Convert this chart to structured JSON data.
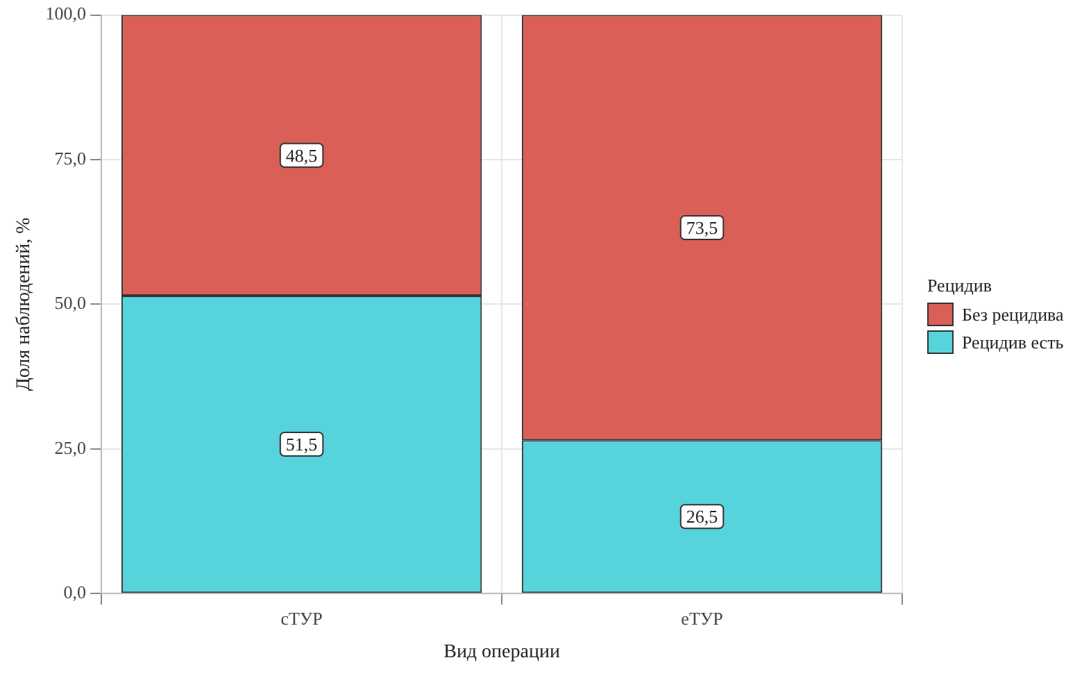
{
  "chart_data": {
    "type": "bar",
    "stacked": true,
    "xlabel": "Вид операции",
    "ylabel": "Доля наблюдений, %",
    "legend_title": "Рецидив",
    "legend": "right",
    "grid": true,
    "categories": [
      "сТУР",
      "еТУР"
    ],
    "series": [
      {
        "name": "Рецидив есть",
        "color": "#56d3db",
        "values": [
          51.5,
          26.5
        ],
        "value_labels": [
          "51,5",
          "26,5"
        ]
      },
      {
        "name": "Без рецидива",
        "color": "#d95f57",
        "values": [
          48.5,
          73.5
        ],
        "value_labels": [
          "48,5",
          "73,5"
        ]
      }
    ],
    "ylim": [
      0,
      100
    ],
    "yticks": [
      {
        "value": 0,
        "label": "0,0"
      },
      {
        "value": 25,
        "label": "25,0"
      },
      {
        "value": 50,
        "label": "50,0"
      },
      {
        "value": 75,
        "label": "75,0"
      },
      {
        "value": 100,
        "label": "100,0"
      }
    ]
  }
}
